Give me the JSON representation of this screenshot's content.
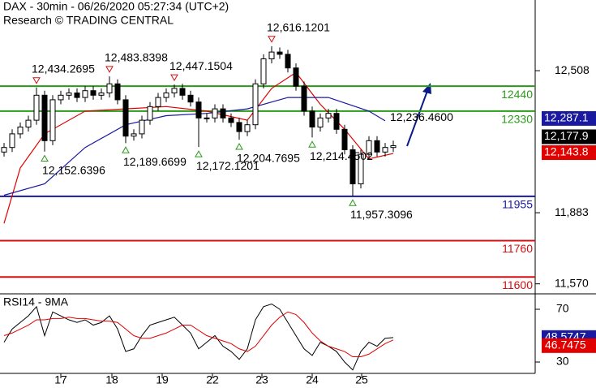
{
  "chart_data": {
    "type": "candlestick",
    "title": "DAX - 30min - 06/26/2020 05:27:34 (UTC+2)",
    "subtitle": "Research © TRADING CENTRAL",
    "xlim": [
      -0.5,
      65.5
    ],
    "xticks": [
      {
        "value": 7,
        "label": "17"
      },
      {
        "value": 13.3,
        "label": "18"
      },
      {
        "value": 19.5,
        "label": "19"
      },
      {
        "value": 25.7,
        "label": "22"
      },
      {
        "value": 31.8,
        "label": "23"
      },
      {
        "value": 38,
        "label": "24"
      },
      {
        "value": 44.1,
        "label": "25"
      }
    ],
    "ylim": [
      11526,
      12819
    ],
    "yticks": [
      {
        "value": 12508,
        "label": "12,508"
      },
      {
        "value": 11883,
        "label": "11,883"
      },
      {
        "value": 11570,
        "label": "11,570"
      }
    ],
    "open": [
      12150,
      12170,
      12230,
      12260,
      12290,
      12400,
      12200,
      12380,
      12400,
      12410,
      12390,
      12420,
      12400,
      12410,
      12450,
      12380,
      12220,
      12230,
      12290,
      12350,
      12390,
      12410,
      12430,
      12400,
      12370,
      12300,
      12300,
      12340,
      12300,
      12280,
      12240,
      12270,
      12450,
      12560,
      12590,
      12580,
      12520,
      12440,
      12330,
      12260,
      12300,
      12320,
      12250,
      12160,
      12010,
      12140,
      12200,
      12150,
      12170
    ],
    "high": [
      12190,
      12250,
      12280,
      12310,
      12434,
      12420,
      12400,
      12420,
      12430,
      12430,
      12440,
      12440,
      12430,
      12483,
      12470,
      12400,
      12250,
      12310,
      12370,
      12410,
      12430,
      12447,
      12450,
      12420,
      12390,
      12320,
      12360,
      12360,
      12320,
      12300,
      12290,
      12470,
      12580,
      12616,
      12610,
      12600,
      12540,
      12460,
      12350,
      12320,
      12340,
      12340,
      12270,
      12180,
      12160,
      12220,
      12220,
      12190,
      12200
    ],
    "low": [
      12130,
      12150,
      12210,
      12240,
      12270,
      12152,
      12180,
      12360,
      12380,
      12370,
      12370,
      12380,
      12380,
      12390,
      12360,
      12189,
      12200,
      12210,
      12270,
      12330,
      12370,
      12390,
      12380,
      12350,
      12172,
      12280,
      12280,
      12280,
      12260,
      12204,
      12220,
      12250,
      12430,
      12540,
      12560,
      12500,
      12420,
      12310,
      12214,
      12240,
      12280,
      12230,
      12140,
      11957,
      11990,
      12120,
      12130,
      12130,
      12150
    ],
    "close": [
      12170,
      12230,
      12260,
      12290,
      12400,
      12200,
      12380,
      12400,
      12410,
      12390,
      12420,
      12400,
      12410,
      12450,
      12380,
      12220,
      12230,
      12290,
      12350,
      12390,
      12410,
      12430,
      12400,
      12370,
      12300,
      12300,
      12340,
      12300,
      12280,
      12240,
      12270,
      12450,
      12560,
      12590,
      12580,
      12520,
      12440,
      12330,
      12260,
      12300,
      12320,
      12250,
      12160,
      12010,
      12140,
      12200,
      12150,
      12170,
      12177.9
    ],
    "close_label": "12,177.9",
    "series": [
      {
        "color": "#e00000",
        "x": [
          0,
          2,
          5,
          10,
          15,
          20,
          25,
          30,
          33,
          36,
          39,
          42,
          45,
          48
        ],
        "values": [
          11836,
          12080,
          12230,
          12330,
          12340,
          12350,
          12330,
          12290,
          12430,
          12500,
          12360,
          12250,
          12120,
          12143.8
        ],
        "value_label": "12,143.8"
      },
      {
        "color": "#1a1aa0",
        "x": [
          0,
          5,
          10,
          15,
          20,
          25,
          30,
          35,
          40,
          45,
          47
        ],
        "values": [
          11960,
          12010,
          12170,
          12270,
          12310,
          12320,
          12340,
          12390,
          12390,
          12330,
          12287.1
        ],
        "value_label": "12,287.1"
      }
    ],
    "levels": [
      {
        "value": 12440,
        "label": "12440",
        "color": "#2a9a1a"
      },
      {
        "value": 12330,
        "label": "12330",
        "color": "#2a9a1a"
      },
      {
        "value": 11955,
        "label": "11955",
        "color": "#1a1aa0"
      },
      {
        "value": 11760,
        "label": "11760",
        "color": "#d01010"
      },
      {
        "value": 11600,
        "label": "11600",
        "color": "#d01010"
      }
    ],
    "highs": [
      {
        "x": 4,
        "value": 12434.2695,
        "label": "12,434.2695"
      },
      {
        "x": 13,
        "value": 12483.8398,
        "label": "12,483.8398"
      },
      {
        "x": 21,
        "value": 12447.1504,
        "label": "12,447.1504"
      },
      {
        "x": 33,
        "value": 12616.1201,
        "label": "12,616.1201"
      }
    ],
    "lows": [
      {
        "x": 5,
        "value": 12152.6396,
        "label": "12,152.6396"
      },
      {
        "x": 15,
        "value": 12189.6699,
        "label": "12,189.6699"
      },
      {
        "x": 24,
        "value": 12172.1201,
        "label": "12,172.1201"
      },
      {
        "x": 29,
        "value": 12204.7695,
        "label": "12,204.7695"
      },
      {
        "x": 38,
        "value": 12214.4502,
        "label": "12,214.4502"
      },
      {
        "x": 43,
        "value": 11957.3096,
        "label": "11,957.3096"
      }
    ],
    "notes": [
      {
        "x": 47.8,
        "value": 12236.46,
        "label": "12,236.4600"
      }
    ],
    "rsi": {
      "title": "RSI14 - 9MA",
      "ylim": [
        21.4,
        81.7
      ],
      "yticks": [
        70,
        30
      ],
      "series": [
        {
          "color": "#000000",
          "values": [
            45,
            55,
            60,
            65,
            72,
            50,
            68,
            65,
            62,
            60,
            62,
            58,
            60,
            65,
            55,
            38,
            40,
            50,
            58,
            60,
            62,
            64,
            58,
            52,
            40,
            45,
            50,
            42,
            38,
            32,
            40,
            62,
            72,
            74,
            70,
            60,
            50,
            40,
            35,
            45,
            42,
            38,
            30,
            24,
            38,
            45,
            42,
            48,
            48.5747
          ],
          "value_label": "48.5747",
          "box": "#1a1aa0"
        },
        {
          "color": "#e00000",
          "values": [
            50,
            52,
            55,
            58,
            62,
            62,
            63,
            63,
            64,
            63,
            63,
            62,
            61,
            61,
            60,
            55,
            50,
            48,
            48,
            50,
            52,
            55,
            58,
            58,
            54,
            50,
            48,
            46,
            44,
            40,
            38,
            42,
            50,
            58,
            64,
            68,
            66,
            60,
            52,
            46,
            42,
            40,
            38,
            34,
            34,
            36,
            40,
            44,
            46.7475
          ],
          "value_label": "46.7475",
          "box": "#e00000"
        }
      ]
    }
  }
}
